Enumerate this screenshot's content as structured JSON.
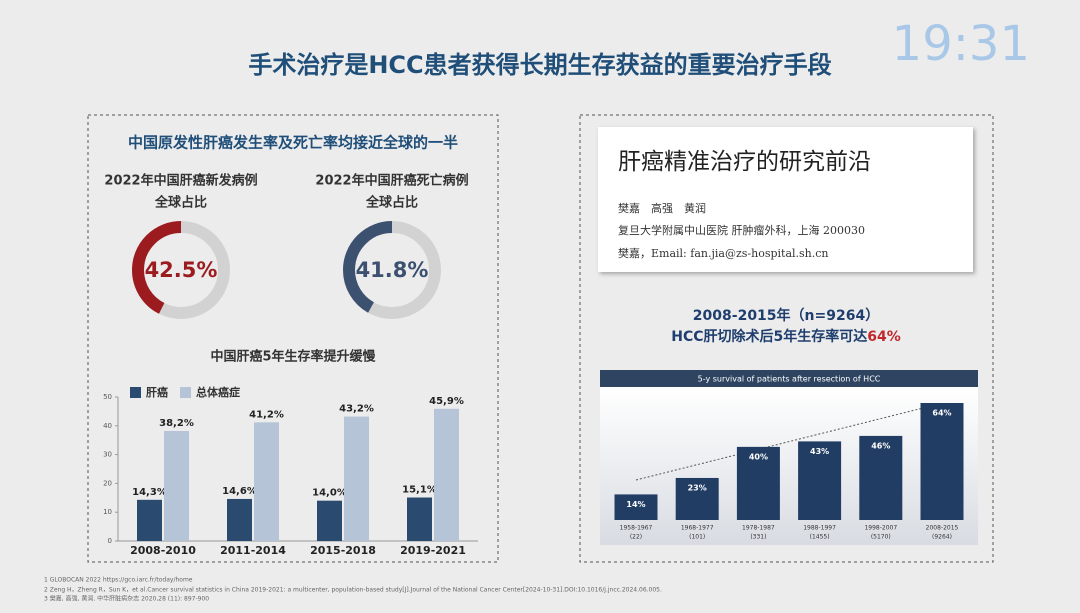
{
  "clock": "19:31",
  "title": "手术治疗是HCC患者获得长期生存获益的重要治疗手段",
  "left_heading": "中国原发性肝癌发生率及死亡率均接近全球的一半",
  "paper": {
    "title": "肝癌精准治疗的研究前沿",
    "authors": "樊嘉　高强　黄润",
    "affiliation": "复旦大学附属中山医院 肝肿瘤外科，上海  200030",
    "contact": "樊嘉，Email:  fan.jia@zs-hospital.sh.cn"
  },
  "footnotes": [
    "1 GLOBOCAN 2022 https://gco.iarc.fr/today/home",
    "2 Zeng H，Zheng R，Sun K，et al.Cancer survival statistics in China 2019-2021: a multicenter, population-based study[J].Journal of the National Cancer Center[2024-10-31].DOI:10.1016/j.jncc.2024.06.005.",
    "3 樊嘉, 高强, 黄润. 中华肝脏病杂志 2020,28 (11): 897-900"
  ],
  "chart_data": [
    {
      "type": "donut",
      "title": "2022年中国肝癌新发病例",
      "subtitle": "全球占比",
      "value": 42.5,
      "value_label": "42.5%",
      "color": "#9b1b1f",
      "rest_color": "#d2d2d2"
    },
    {
      "type": "donut",
      "title": "2022年中国肝癌死亡病例",
      "subtitle": "全球占比",
      "value": 41.8,
      "value_label": "41.8%",
      "color": "#3c5070",
      "rest_color": "#d2d2d2"
    },
    {
      "type": "grouped-bar",
      "title": "中国肝癌5年生存率提升缓慢",
      "categories": [
        "2008-2010",
        "2011-2014",
        "2015-2018",
        "2019-2021"
      ],
      "series": [
        {
          "name": "肝癌",
          "color": "#2b4a70",
          "values": [
            14.3,
            14.6,
            14.0,
            15.1
          ],
          "value_labels": [
            "14,3%",
            "14,6%",
            "14,0%",
            "15,1%"
          ]
        },
        {
          "name": "总体癌症",
          "color": "#b6c4d7",
          "values": [
            38.2,
            41.2,
            43.2,
            45.9
          ],
          "value_labels": [
            "38,2%",
            "41,2%",
            "43,2%",
            "45,9%"
          ]
        }
      ],
      "ylim": [
        0,
        50
      ],
      "yticks": [
        0,
        10,
        20,
        30,
        40,
        50
      ]
    },
    {
      "type": "bar",
      "title": "2008-2015年（n=9264）",
      "subtitle": "HCC肝切除术后5年生存率可达",
      "highlight": "64%",
      "header": "5-y survival of patients after resection of HCC",
      "categories": [
        "1958-1967",
        "1968-1977",
        "1978-1987",
        "1988-1997",
        "1998-2007",
        "2008-2015"
      ],
      "counts": [
        "(22)",
        "(101)",
        "(331)",
        "(1455)",
        "(5170)",
        "(9264)"
      ],
      "values": [
        14,
        23,
        40,
        43,
        46,
        64
      ],
      "value_labels": [
        "14%",
        "23%",
        "40%",
        "43%",
        "46%",
        "64%"
      ],
      "color": "#223d63"
    }
  ]
}
